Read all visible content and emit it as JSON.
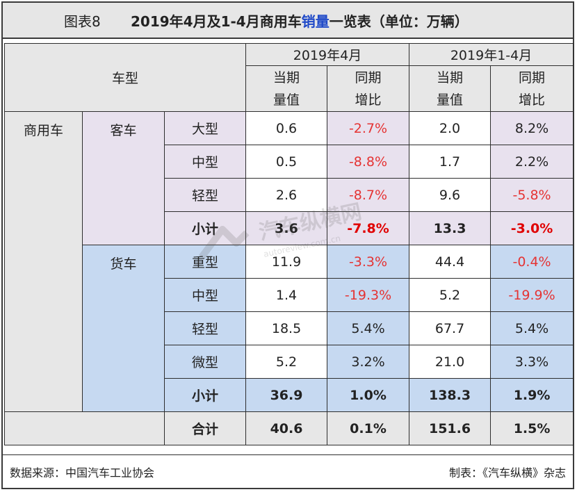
{
  "title": {
    "label": "图表8",
    "text_before": "2019年4月及1-4月商用车",
    "text_highlight": "销量",
    "text_after": "一览表（单位：万辆）"
  },
  "header": {
    "model": "车型",
    "period1": "2019年4月",
    "period2": "2019年1-4月",
    "value_l1": "当期",
    "value_l2": "量值",
    "growth_l1": "同期",
    "growth_l2": "增比"
  },
  "category": "商用车",
  "bus": {
    "name": "客车",
    "rows": [
      {
        "type": "大型",
        "apr_val": "0.6",
        "apr_yoy": "-2.7%",
        "ytd_val": "2.0",
        "ytd_yoy": "8.2%"
      },
      {
        "type": "中型",
        "apr_val": "0.5",
        "apr_yoy": "-8.8%",
        "ytd_val": "1.7",
        "ytd_yoy": "2.2%"
      },
      {
        "type": "轻型",
        "apr_val": "2.6",
        "apr_yoy": "-8.7%",
        "ytd_val": "9.6",
        "ytd_yoy": "-5.8%"
      }
    ],
    "subtotal": {
      "label": "小计",
      "apr_val": "3.6",
      "apr_yoy": "-7.8%",
      "ytd_val": "13.3",
      "ytd_yoy": "-3.0%"
    }
  },
  "truck": {
    "name": "货车",
    "rows": [
      {
        "type": "重型",
        "apr_val": "11.9",
        "apr_yoy": "-3.3%",
        "ytd_val": "44.4",
        "ytd_yoy": "-0.4%"
      },
      {
        "type": "中型",
        "apr_val": "1.4",
        "apr_yoy": "-19.3%",
        "ytd_val": "5.2",
        "ytd_yoy": "-19.9%"
      },
      {
        "type": "轻型",
        "apr_val": "18.5",
        "apr_yoy": "5.4%",
        "ytd_val": "67.7",
        "ytd_yoy": "5.4%"
      },
      {
        "type": "微型",
        "apr_val": "5.2",
        "apr_yoy": "3.2%",
        "ytd_val": "21.0",
        "ytd_yoy": "3.3%"
      }
    ],
    "subtotal": {
      "label": "小计",
      "apr_val": "36.9",
      "apr_yoy": "1.0%",
      "ytd_val": "138.3",
      "ytd_yoy": "1.9%"
    }
  },
  "total": {
    "label": "合计",
    "apr_val": "40.6",
    "apr_yoy": "0.1%",
    "ytd_val": "151.6",
    "ytd_yoy": "1.5%"
  },
  "footer": {
    "source": "数据来源：中国汽车工业协会",
    "maker": "制表：《汽车纵横》杂志"
  },
  "watermark": {
    "text": "汽车纵横网",
    "sub": "autoreview.com.cn"
  }
}
